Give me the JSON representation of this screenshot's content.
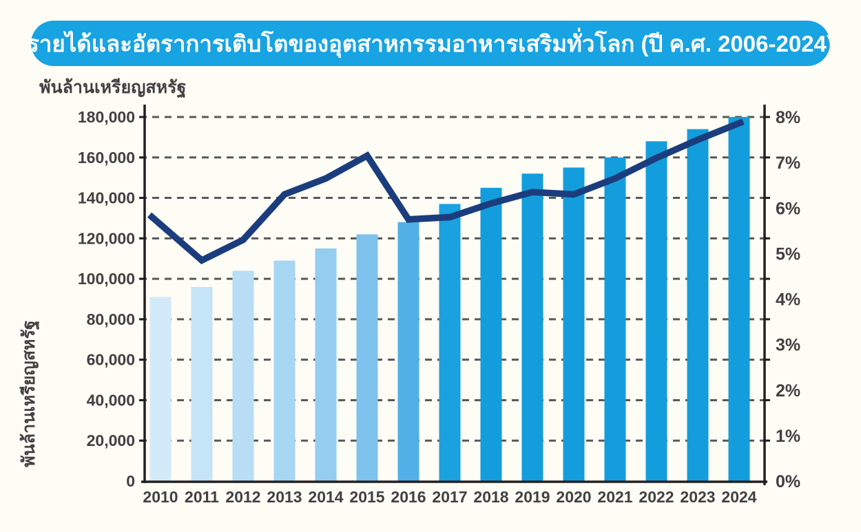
{
  "header": {
    "title": "รายได้และอัตราการเติบโตของอุตสาหกรรมอาหารเสริมทั่วโลก (ปี ค.ศ. 2006-2024)",
    "title_bg": "#18a3e2",
    "title_color": "#ffffff"
  },
  "unit_label_top": "พันล้านเหรียญสหรัฐ",
  "unit_label_side": "พันล้านเหรียญสหรัฐ",
  "chart_data": {
    "type": "bar",
    "subtype": "combo-bar-line-dual-axis",
    "categories": [
      "2010",
      "2011",
      "2012",
      "2013",
      "2014",
      "2015",
      "2016",
      "2017",
      "2018",
      "2019",
      "2020",
      "2021",
      "2022",
      "2023",
      "2024"
    ],
    "series": [
      {
        "name": "revenue",
        "type": "bar",
        "axis": "left",
        "values": [
          91000,
          96000,
          104000,
          109000,
          115000,
          122000,
          128000,
          137000,
          145000,
          152000,
          155000,
          160000,
          168000,
          174000,
          180000
        ],
        "bar_colors": [
          "#d3eaf9",
          "#c6e4f7",
          "#b7def5",
          "#a7d6f3",
          "#94cdf0",
          "#7dc3ed",
          "#53b0e7",
          "#1aa1df",
          "#149ddc",
          "#149ddc",
          "#149ddc",
          "#149ddc",
          "#149ddc",
          "#149ddc",
          "#149ddc"
        ]
      },
      {
        "name": "growth-rate",
        "type": "line",
        "axis": "right",
        "values": [
          5.85,
          4.85,
          5.3,
          6.3,
          6.65,
          7.15,
          5.75,
          5.8,
          6.1,
          6.35,
          6.3,
          6.65,
          7.1,
          7.5,
          7.9
        ],
        "color": "#1b3d7d"
      }
    ],
    "left_axis": {
      "label": "พันล้านเหรียญสหรัฐ",
      "min": 0,
      "max": 180000,
      "step": 20000,
      "tick_labels": [
        "0",
        "20,000",
        "40,000",
        "60,000",
        "80,000",
        "100,000",
        "120,000",
        "140,000",
        "160,000",
        "180,000"
      ]
    },
    "right_axis": {
      "min": 0,
      "max": 8,
      "step": 1,
      "tick_labels": [
        "0%",
        "1%",
        "2%",
        "3%",
        "4%",
        "5%",
        "6%",
        "7%",
        "8%"
      ]
    },
    "grid": "horizontal-dashed",
    "grid_color": "#57585a",
    "axis_color": "#231f20",
    "legend": "none",
    "title": "รายได้และอัตราการเติมโตของอุตสาหกรรมอาหารเสริมทั่วโลก (ปี ค.ศ. 2006-2024)"
  }
}
